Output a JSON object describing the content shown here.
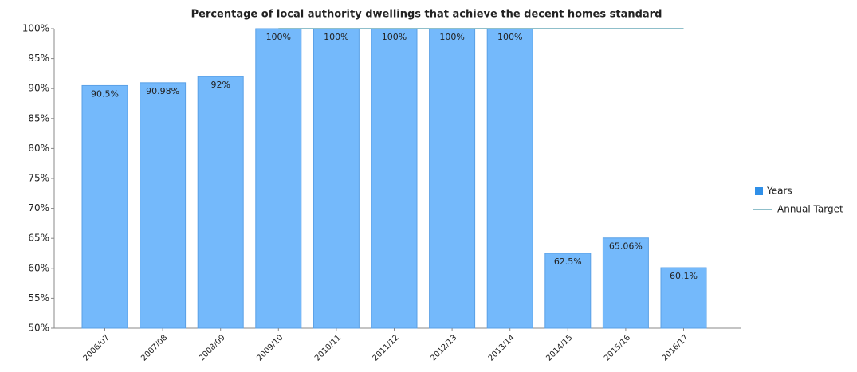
{
  "chart_data": {
    "type": "bar",
    "title": "Percentage of local authority dwellings that achieve the decent homes standard",
    "categories": [
      "2006/07",
      "2007/08",
      "2008/09",
      "2009/10",
      "2010/11",
      "2011/12",
      "2012/13",
      "2013/14",
      "2014/15",
      "2015/16",
      "2016/17"
    ],
    "series": [
      {
        "name": "Years",
        "type": "bar",
        "color": "#74b9fb",
        "values": [
          90.5,
          90.98,
          92,
          100,
          100,
          100,
          100,
          100,
          62.5,
          65.06,
          60.1
        ],
        "value_labels": [
          "90.5%",
          "90.98%",
          "92%",
          "100%",
          "100%",
          "100%",
          "100%",
          "100%",
          "62.5%",
          "65.06%",
          "60.1%"
        ]
      },
      {
        "name": "Annual Target",
        "type": "line",
        "color": "#6aaab8",
        "values": [
          null,
          null,
          null,
          100,
          100,
          100,
          100,
          100,
          100,
          100,
          100
        ]
      }
    ],
    "ylim": [
      50,
      100
    ],
    "yticks": [
      {
        "value": 50,
        "label": "50%"
      },
      {
        "value": 55,
        "label": "55%"
      },
      {
        "value": 60,
        "label": "60%"
      },
      {
        "value": 65,
        "label": "65%"
      },
      {
        "value": 70,
        "label": "70%"
      },
      {
        "value": 75,
        "label": "75%"
      },
      {
        "value": 80,
        "label": "80%"
      },
      {
        "value": 85,
        "label": "85%"
      },
      {
        "value": 90,
        "label": "90%"
      },
      {
        "value": 95,
        "label": "95%"
      },
      {
        "value": 100,
        "label": "100%"
      }
    ],
    "legend": "right"
  }
}
